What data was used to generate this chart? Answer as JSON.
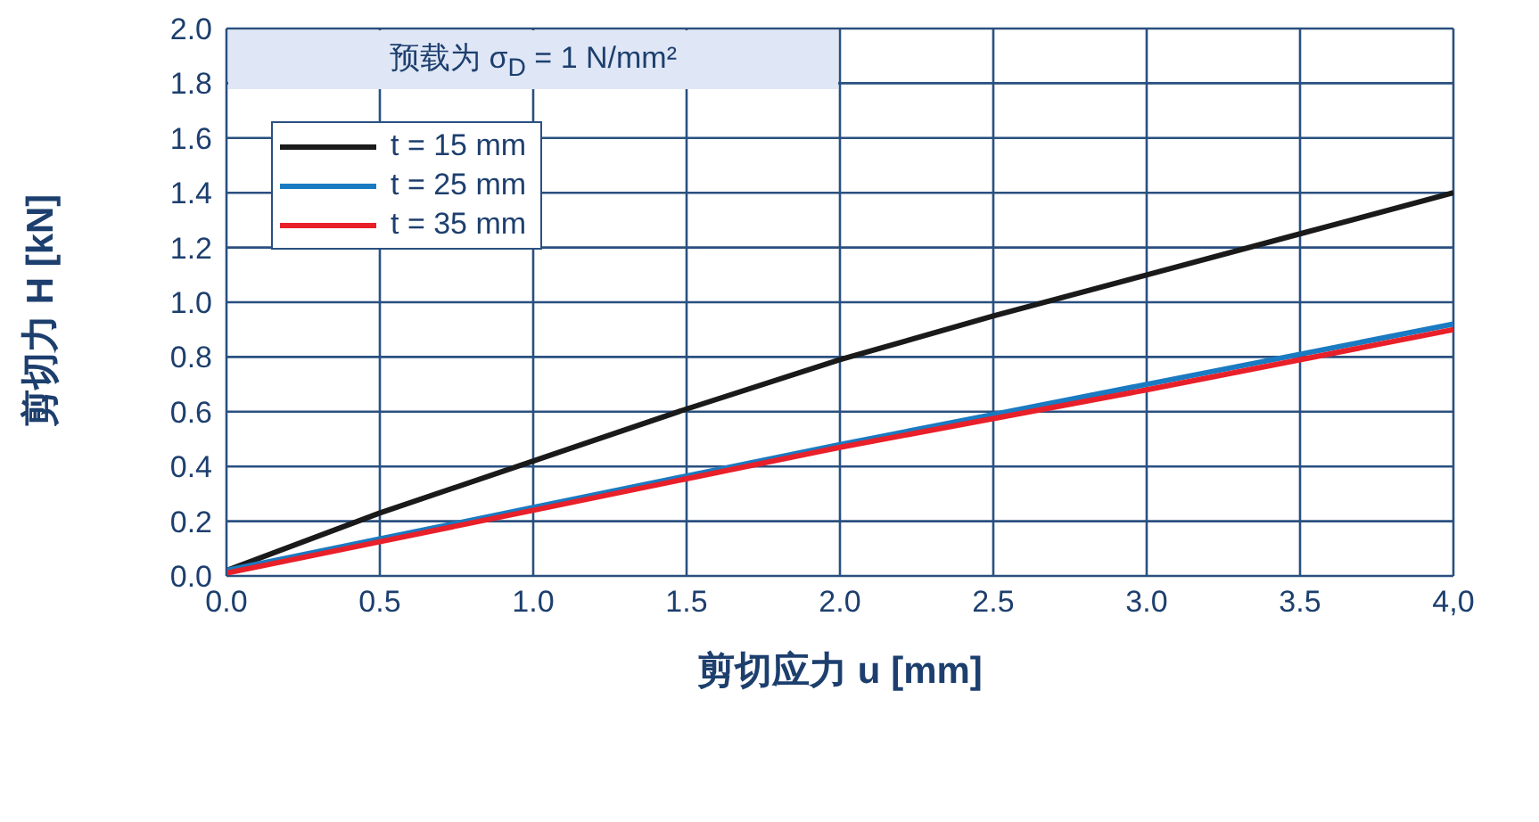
{
  "chart_data": {
    "type": "line",
    "xlabel": "剪切应力 u [mm]",
    "ylabel": "剪切力 H [kN]",
    "annotations": [
      "预载为 σ$_{D}$ = 1 N/mm²"
    ],
    "x": [
      0,
      0.5,
      1,
      1.5,
      2,
      2.5,
      3,
      3.5,
      4
    ],
    "series": [
      {
        "name": "t = 15 mm",
        "color": "#1a1a1a",
        "values": [
          0.02,
          0.23,
          0.42,
          0.61,
          0.79,
          0.95,
          1.1,
          1.25,
          1.4
        ]
      },
      {
        "name": "t = 25 mm",
        "color": "#1a7ac2",
        "values": [
          0.02,
          0.135,
          0.25,
          0.365,
          0.48,
          0.59,
          0.7,
          0.81,
          0.92
        ]
      },
      {
        "name": "t = 35 mm",
        "color": "#e8202a",
        "values": [
          0.01,
          0.125,
          0.24,
          0.355,
          0.47,
          0.575,
          0.68,
          0.79,
          0.9
        ]
      }
    ],
    "xlim": [
      0,
      4
    ],
    "ylim": [
      0,
      2
    ],
    "xticks": [
      {
        "value": 0,
        "label": "0.0"
      },
      {
        "value": 0.5,
        "label": "0.5"
      },
      {
        "value": 1,
        "label": "1.0"
      },
      {
        "value": 1.5,
        "label": "1.5"
      },
      {
        "value": 2,
        "label": "2.0"
      },
      {
        "value": 2.5,
        "label": "2.5"
      },
      {
        "value": 3,
        "label": "3.0"
      },
      {
        "value": 3.5,
        "label": "3.5"
      },
      {
        "value": 4,
        "label": "4,0"
      }
    ],
    "yticks": [
      {
        "value": 0,
        "label": "0.0"
      },
      {
        "value": 0.2,
        "label": "0.2"
      },
      {
        "value": 0.4,
        "label": "0.4"
      },
      {
        "value": 0.6,
        "label": "0.6"
      },
      {
        "value": 0.8,
        "label": "0.8"
      },
      {
        "value": 1,
        "label": "1.0"
      },
      {
        "value": 1.2,
        "label": "1.2"
      },
      {
        "value": 1.4,
        "label": "1.4"
      },
      {
        "value": 1.6,
        "label": "1.6"
      },
      {
        "value": 1.8,
        "label": "1.8"
      },
      {
        "value": 2,
        "label": "2.0"
      }
    ],
    "grid": true,
    "legend": "top left",
    "marker": "none",
    "line_style": "solid"
  }
}
